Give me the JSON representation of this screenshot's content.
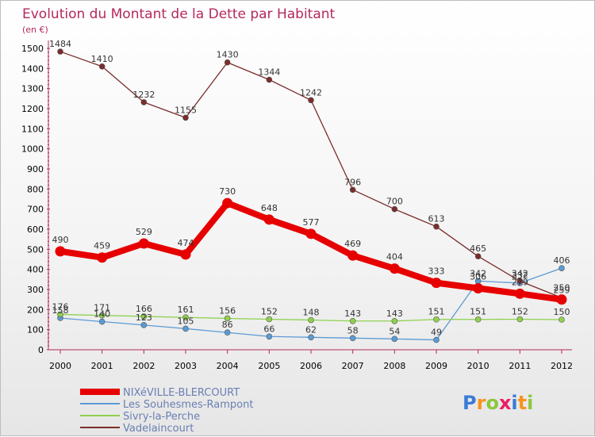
{
  "chart_data": {
    "type": "line",
    "title": "Evolution du Montant de la Dette par Habitant",
    "subtitle": "(en €)",
    "xlabel": "",
    "ylabel": "",
    "ylim": [
      0,
      1500
    ],
    "yticks": [
      0,
      100,
      200,
      300,
      400,
      500,
      600,
      700,
      800,
      900,
      1000,
      1100,
      1200,
      1300,
      1400,
      1500
    ],
    "categories": [
      "2000",
      "2001",
      "2002",
      "2003",
      "2004",
      "2005",
      "2006",
      "2007",
      "2008",
      "2009",
      "2010",
      "2011",
      "2012"
    ],
    "grid": false,
    "legend_position": "bottom-left",
    "series": [
      {
        "name": "NIXéVILLE-BLERCOURT",
        "color": "#e60000",
        "values": [
          490,
          459,
          529,
          474,
          730,
          648,
          577,
          469,
          404,
          333,
          306,
          279,
          250
        ]
      },
      {
        "name": "Les Souhesmes-Rampont",
        "color": "#5b9bd5",
        "values": [
          158,
          140,
          123,
          105,
          86,
          66,
          62,
          58,
          54,
          49,
          342,
          332,
          406
        ]
      },
      {
        "name": "Sivry-la-Perche",
        "color": "#8fd14f",
        "values": [
          176,
          171,
          166,
          161,
          156,
          152,
          148,
          143,
          143,
          151,
          151,
          152,
          150
        ]
      },
      {
        "name": "Vadelaincourt",
        "color": "#7b2c2c",
        "values": [
          1484,
          1410,
          1232,
          1155,
          1430,
          1344,
          1242,
          796,
          700,
          613,
          465,
          342,
          259
        ]
      }
    ]
  },
  "branding": {
    "logo_letters": [
      "P",
      "r",
      "o",
      "x",
      "i",
      "t",
      "i"
    ],
    "logo_colors": [
      "#3a7bd5",
      "#f7941d",
      "#8dc63f",
      "#e91e63",
      "#3a7bd5",
      "#f7941d",
      "#8dc63f"
    ]
  }
}
